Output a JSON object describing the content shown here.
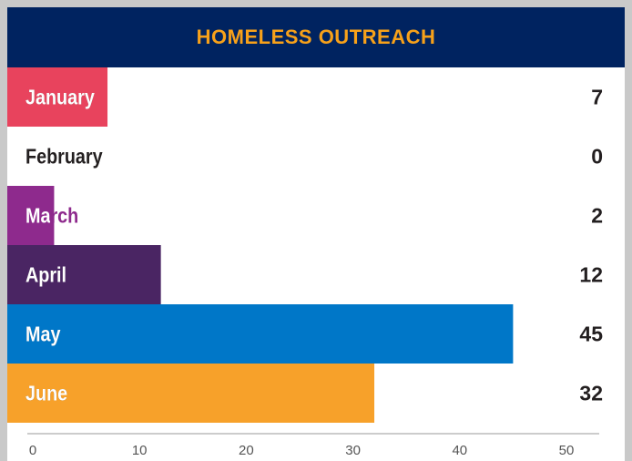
{
  "title": "HOMELESS OUTREACH",
  "colors": {
    "header_bg": "#002360",
    "title_text": "#f7a11a",
    "January": "#e8435d",
    "February": "#e8435d",
    "March": "#8e2a8d",
    "April": "#4a2563",
    "May": "#0077c8",
    "June": "#f7a12a"
  },
  "chart_data": {
    "type": "bar",
    "orientation": "horizontal",
    "title": "HOMELESS OUTREACH",
    "categories": [
      "January",
      "February",
      "March",
      "April",
      "May",
      "June"
    ],
    "values": [
      7,
      0,
      2,
      12,
      45,
      32
    ],
    "xlim": [
      0,
      50
    ],
    "xticks": [
      0,
      10,
      20,
      30,
      40,
      50
    ],
    "grid": false,
    "legend": "none"
  }
}
